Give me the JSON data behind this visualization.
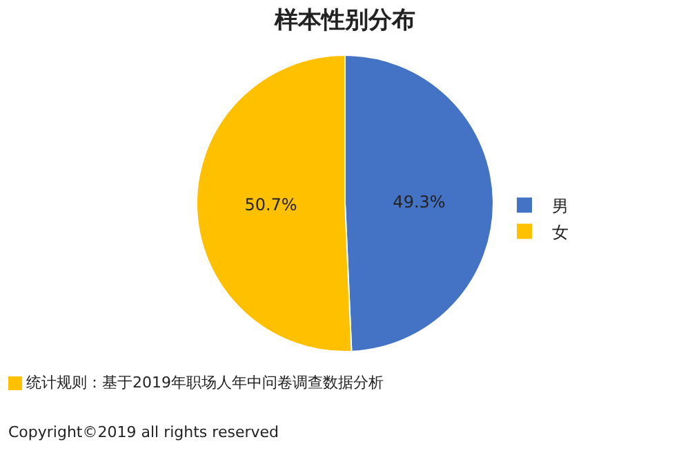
{
  "chart_data": {
    "type": "pie",
    "title": "样本性别分布",
    "categories": [
      "男",
      "女"
    ],
    "values": [
      49.3,
      50.7
    ],
    "colors": [
      "#4472c4",
      "#ffc000"
    ],
    "value_labels": [
      "49.3%",
      "50.7%"
    ],
    "legend": "right",
    "annotations": [
      "统计规则：基于2019年职场人年中问卷调查数据分析",
      "Copyright©2019 all rights reserved"
    ]
  }
}
